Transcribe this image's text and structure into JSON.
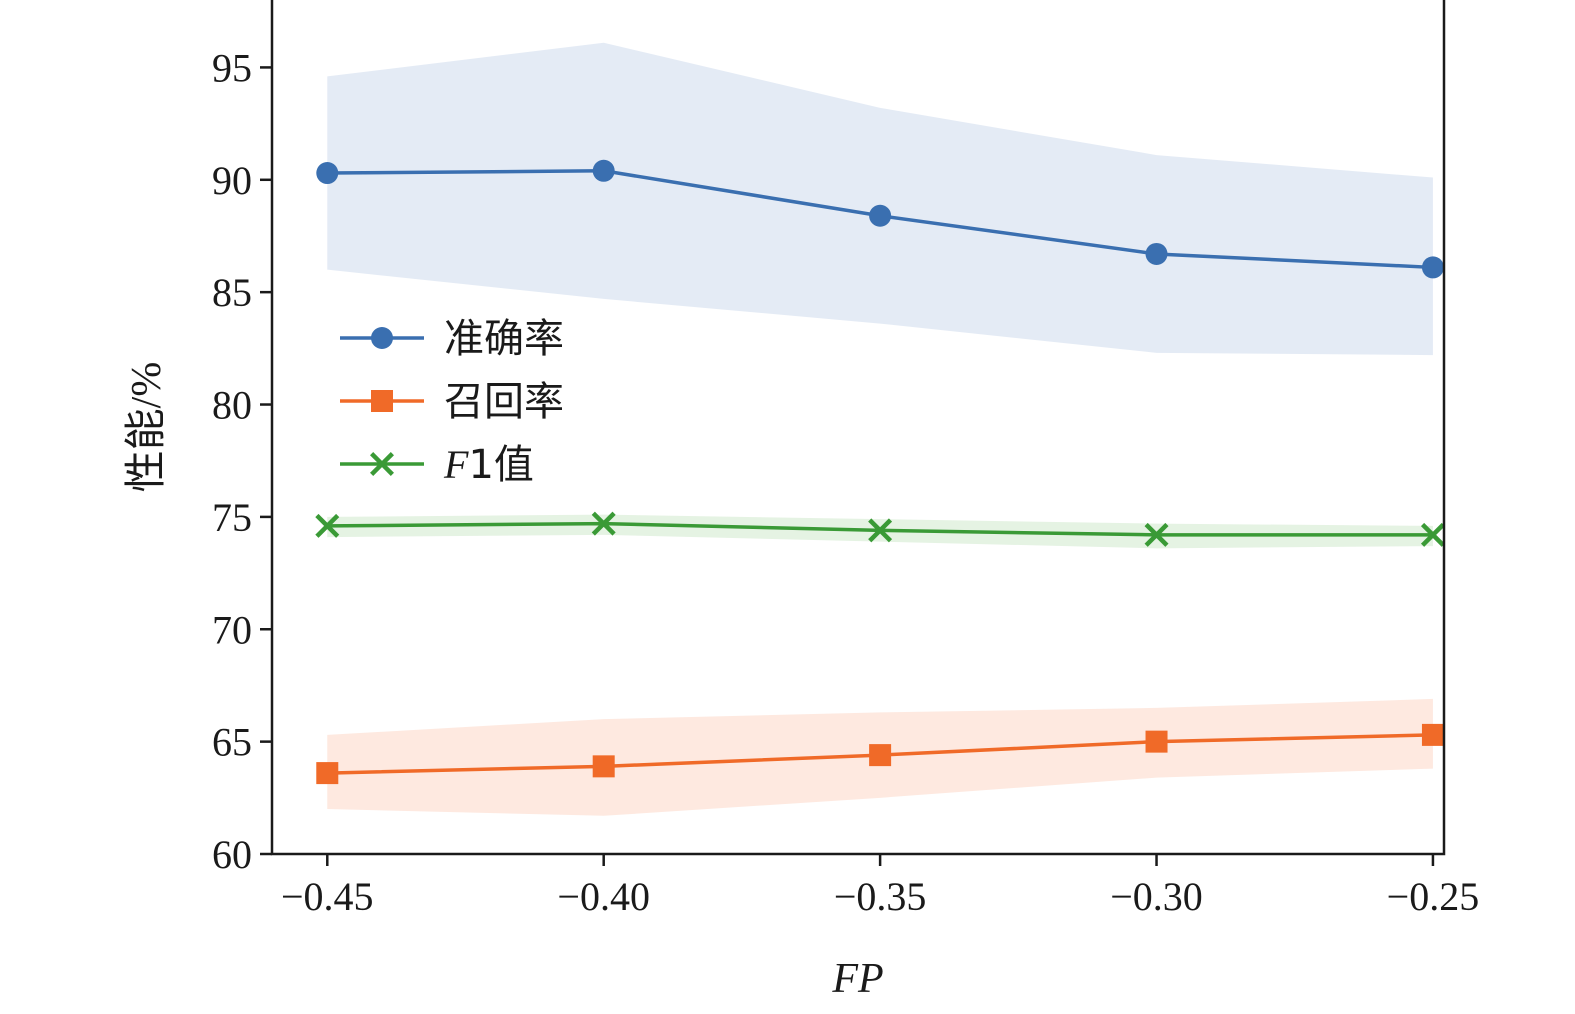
{
  "chart_data": {
    "type": "line",
    "title": "",
    "xlabel": "FP",
    "ylabel": "性能/%",
    "x": [
      -0.45,
      -0.4,
      -0.35,
      -0.3,
      -0.25
    ],
    "x_tick_labels": [
      "−0.45",
      "−0.40",
      "−0.35",
      "−0.30",
      "−0.25"
    ],
    "xlim": [
      -0.46,
      -0.248
    ],
    "ylim": [
      60,
      98
    ],
    "y_ticks": [
      60,
      65,
      70,
      75,
      80,
      85,
      90,
      95
    ],
    "grid": false,
    "legend_position": "center-left",
    "series": [
      {
        "name": "准确率",
        "legend_parts": [
          "准确率"
        ],
        "marker": "circle",
        "color": "#3a6fb0",
        "band_color": "#dbe4f2",
        "values": [
          90.3,
          90.4,
          88.4,
          86.7,
          86.1
        ],
        "band_upper": [
          94.6,
          96.1,
          93.2,
          91.1,
          90.1
        ],
        "band_lower": [
          86.0,
          84.7,
          83.6,
          82.3,
          82.2
        ]
      },
      {
        "name": "召回率",
        "legend_parts": [
          "召回率"
        ],
        "marker": "square",
        "color": "#f06a28",
        "band_color": "#fde2d5",
        "values": [
          63.6,
          63.9,
          64.4,
          65.0,
          65.3
        ],
        "band_upper": [
          65.3,
          66.0,
          66.3,
          66.5,
          66.9
        ],
        "band_lower": [
          62.0,
          61.7,
          62.5,
          63.4,
          63.8
        ]
      },
      {
        "name": "F1值",
        "legend_parts": [
          "F",
          "1值"
        ],
        "marker": "x",
        "color": "#3a9a36",
        "band_color": "#dcefd9",
        "values": [
          74.6,
          74.7,
          74.4,
          74.2,
          74.2
        ],
        "band_upper": [
          75.0,
          75.1,
          74.9,
          74.7,
          74.6
        ],
        "band_lower": [
          74.1,
          74.2,
          73.9,
          73.6,
          73.7
        ]
      }
    ]
  }
}
